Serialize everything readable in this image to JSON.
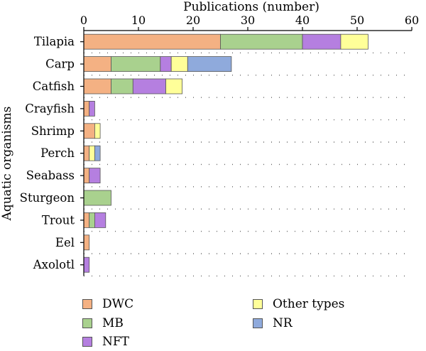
{
  "chart_data": {
    "type": "bar",
    "orientation": "horizontal",
    "stacked": true,
    "xlabel": "Publications (number)",
    "ylabel": "Aquatic organisms",
    "xlim": [
      0,
      60
    ],
    "xticks": [
      "0",
      "10",
      "20",
      "30",
      "40",
      "50",
      "60"
    ],
    "categories": [
      "Tilapia",
      "Carp",
      "Catfish",
      "Crayfish",
      "Shrimp",
      "Perch",
      "Seabass",
      "Sturgeon",
      "Trout",
      "Eel",
      "Axolotl"
    ],
    "series": [
      {
        "name": "DWC",
        "color": "#f4b183",
        "values": [
          25,
          5,
          5,
          1,
          2,
          1,
          1,
          0,
          1,
          1,
          0
        ]
      },
      {
        "name": "MB",
        "color": "#a9d18e",
        "values": [
          15,
          9,
          4,
          0,
          0,
          0,
          0,
          5,
          1,
          0,
          0
        ]
      },
      {
        "name": "NFT",
        "color": "#b57fe0",
        "values": [
          7,
          2,
          6,
          1,
          0,
          0,
          2,
          0,
          2,
          0,
          1
        ]
      },
      {
        "name": "Other types",
        "color": "#ffff99",
        "values": [
          5,
          3,
          3,
          0,
          1,
          1,
          0,
          0,
          0,
          0,
          0
        ]
      },
      {
        "name": "NR",
        "color": "#8faadc",
        "values": [
          0,
          8,
          0,
          0,
          0,
          1,
          0,
          0,
          0,
          0,
          0
        ]
      }
    ],
    "grid": "dotted-horizontal",
    "legend_position": "bottom"
  }
}
